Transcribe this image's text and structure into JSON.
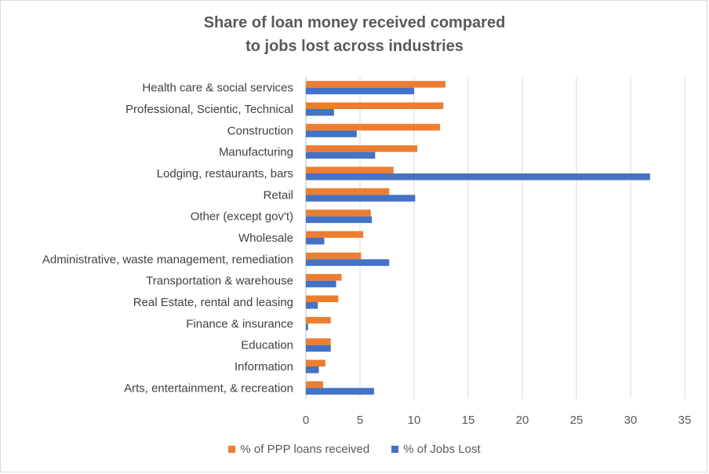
{
  "chart_data": {
    "type": "bar",
    "orientation": "horizontal",
    "title_lines": [
      "Share of loan money received compared",
      "to jobs lost across industries"
    ],
    "categories": [
      "Health care & social services",
      "Professional, Scientic, Technical",
      "Construction",
      "Manufacturing",
      "Lodging, restaurants, bars",
      "Retail",
      "Other (except gov't)",
      "Wholesale",
      "Administrative, waste management, remediation",
      "Transportation & warehouse",
      "Real Estate, rental and leasing",
      "Finance & insurance",
      "Education",
      "Information",
      "Arts, entertainment, & recreation"
    ],
    "series": [
      {
        "name": "% of PPP loans received",
        "color": "#ed7d31",
        "values": [
          12.9,
          12.7,
          12.4,
          10.3,
          8.1,
          7.7,
          6.0,
          5.3,
          5.1,
          3.3,
          3.0,
          2.3,
          2.3,
          1.8,
          1.6
        ]
      },
      {
        "name": "% of Jobs Lost",
        "color": "#4472c4",
        "values": [
          10.0,
          2.6,
          4.7,
          6.4,
          31.8,
          10.1,
          6.1,
          1.7,
          7.7,
          2.8,
          1.1,
          0.2,
          2.3,
          1.2,
          6.3
        ]
      }
    ],
    "xlim": [
      0,
      35
    ],
    "xticks": [
      "0",
      "5",
      "10",
      "15",
      "20",
      "25",
      "30",
      "35"
    ],
    "grid": "vertical",
    "legend_position": "bottom"
  }
}
